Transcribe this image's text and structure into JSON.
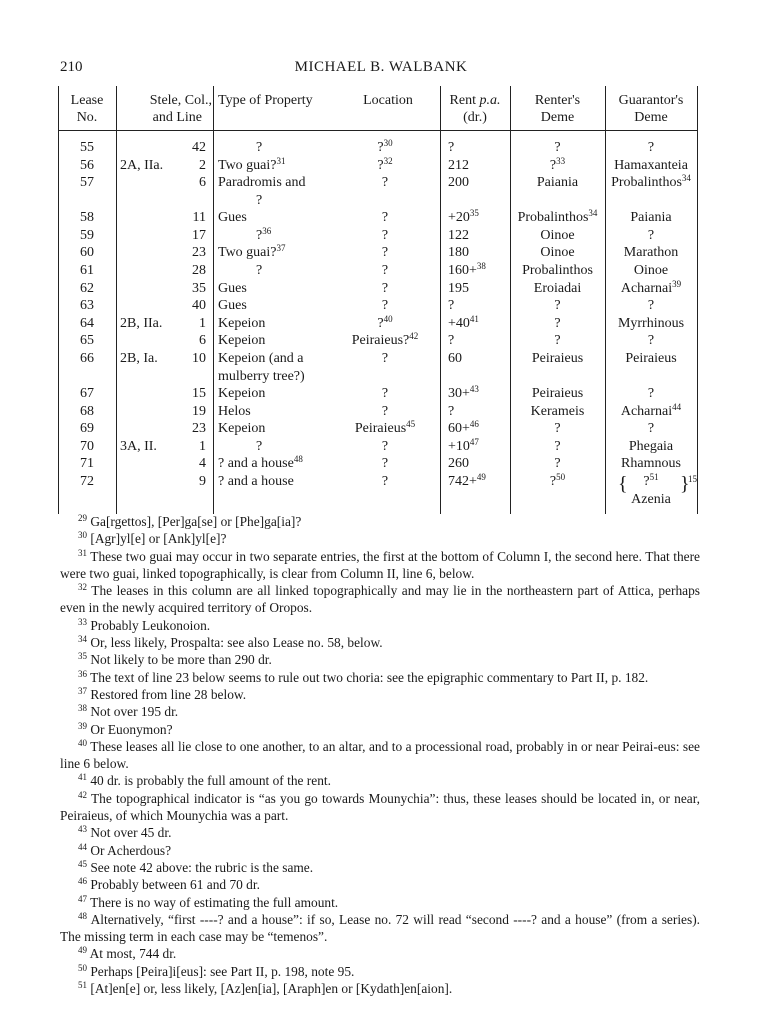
{
  "header": {
    "page_number": "210",
    "running_head": "MICHAEL B. WALBANK"
  },
  "table": {
    "columns": {
      "lease": [
        "Lease",
        "No."
      ],
      "stele": [
        "Stele, Col.,",
        "and Line"
      ],
      "type": "Type of Property",
      "location": "Location",
      "rent": [
        "Rent ",
        "p.a.",
        "(dr.)"
      ],
      "renter": [
        "Renter's",
        "Deme"
      ],
      "guarantor": [
        "Guarantor's",
        "Deme"
      ]
    },
    "rows": [
      {
        "lease": "55",
        "stele_line": "42",
        "type": "?",
        "location": "?",
        "location_sup": "30",
        "rent": "?",
        "renter": "?",
        "guarantor": "?"
      },
      {
        "lease": "56",
        "stele_prefix": "2A, IIa.",
        "stele_line": "2",
        "type": "Two guai?",
        "type_sup": "31",
        "location": "?",
        "location_sup": "32",
        "rent": "212",
        "renter": "?",
        "renter_sup": "33",
        "guarantor": "Hamaxanteia"
      },
      {
        "lease": "57",
        "stele_line": "6",
        "type": "Paradromis and",
        "type_line2": "?",
        "location": "?",
        "rent": "200",
        "renter": "Paiania",
        "guarantor": "Probalinthos",
        "guarantor_sup": "34"
      },
      {
        "lease": "58",
        "stele_line": "11",
        "type": "Gues",
        "location": "?",
        "rent": "+20",
        "rent_sup": "35",
        "renter": "Probalinthos",
        "renter_sup": "34",
        "guarantor": "Paiania"
      },
      {
        "lease": "59",
        "stele_line": "17",
        "type": "?",
        "type_sup": "36",
        "location": "?",
        "rent": "122",
        "renter": "Oinoe",
        "guarantor": "?"
      },
      {
        "lease": "60",
        "stele_line": "23",
        "type": "Two guai?",
        "type_sup": "37",
        "location": "?",
        "rent": "180",
        "renter": "Oinoe",
        "guarantor": "Marathon"
      },
      {
        "lease": "61",
        "stele_line": "28",
        "type": "?",
        "location": "?",
        "rent": "160+",
        "rent_sup": "38",
        "renter": "Probalinthos",
        "guarantor": "Oinoe"
      },
      {
        "lease": "62",
        "stele_line": "35",
        "type": "Gues",
        "location": "?",
        "rent": "195",
        "renter": "Eroiadai",
        "guarantor": "Acharnai",
        "guarantor_sup": "39"
      },
      {
        "lease": "63",
        "stele_line": "40",
        "type": "Gues",
        "location": "?",
        "rent": "?",
        "renter": "?",
        "guarantor": "?"
      },
      {
        "lease": "64",
        "stele_prefix": "2B, IIa.",
        "stele_line": "1",
        "type": "Kepeion",
        "location": "?",
        "location_sup": "40",
        "rent": "+40",
        "rent_sup": "41",
        "renter": "?",
        "guarantor": "Myrrhinous"
      },
      {
        "lease": "65",
        "stele_line": "6",
        "type": "Kepeion",
        "location": "Peiraieus?",
        "location_sup": "42",
        "rent": "?",
        "renter": "?",
        "guarantor": "?"
      },
      {
        "lease": "66",
        "stele_prefix": "2B, Ia.",
        "stele_line": "10",
        "type": "Kepeion (and a",
        "type_line2": "mulberry tree?)",
        "location": "?",
        "rent": "60",
        "renter": "Peiraieus",
        "guarantor": "Peiraieus"
      },
      {
        "lease": "67",
        "stele_line": "15",
        "type": "Kepeion",
        "location": "?",
        "rent": "30+",
        "rent_sup": "43",
        "renter": "Peiraieus",
        "guarantor": "?"
      },
      {
        "lease": "68",
        "stele_line": "19",
        "type": "Helos",
        "location": "?",
        "rent": "?",
        "renter": "Kerameis",
        "guarantor": "Acharnai",
        "guarantor_sup": "44"
      },
      {
        "lease": "69",
        "stele_line": "23",
        "type": "Kepeion",
        "location": "Peiraieus",
        "location_sup": "45",
        "rent": "60+",
        "rent_sup": "46",
        "renter": "?",
        "guarantor": "?"
      },
      {
        "lease": "70",
        "stele_prefix": "3A, II.",
        "stele_line": "1",
        "type": "?",
        "location": "?",
        "rent": "+10",
        "rent_sup": "47",
        "renter": "?",
        "guarantor": "Phegaia"
      },
      {
        "lease": "71",
        "stele_line": "4",
        "type": "? and a house",
        "type_sup": "48",
        "location": "?",
        "rent": "260",
        "renter": "?",
        "guarantor": "Rhamnous"
      },
      {
        "lease": "72",
        "stele_line": "9",
        "type": "? and a house",
        "location": "?",
        "rent": "742+",
        "rent_sup": "49",
        "renter": "?",
        "renter_sup": "50",
        "guarantor": "?",
        "guarantor_sup": "51",
        "guarantor_note": "15",
        "guarantor_line2": "Azenia"
      }
    ]
  },
  "footnotes": [
    {
      "n": "29",
      "text": "Ga[rgettos], [Per]ga[se] or [Phe]ga[ia]?"
    },
    {
      "n": "30",
      "text": "[Agr]yl[e] or [Ank]yl[e]?"
    },
    {
      "n": "31",
      "text": "These two guai may occur in two separate entries, the first at the bottom of Column I, the second here. That there were two guai, linked topographically, is clear from Column II, line 6, below."
    },
    {
      "n": "32",
      "text": "The leases in this column are all linked topographically and may lie in the northeastern part of Attica, perhaps even in the newly acquired territory of Oropos."
    },
    {
      "n": "33",
      "text": "Probably Leukonoion."
    },
    {
      "n": "34",
      "text": "Or, less likely, Prospalta: see also Lease no. 58, below."
    },
    {
      "n": "35",
      "text": "Not likely to be more than 290 dr."
    },
    {
      "n": "36",
      "text": "The text of line 23 below seems to rule out two choria: see the epigraphic commentary to Part II, p. 182."
    },
    {
      "n": "37",
      "text": "Restored from line 28 below."
    },
    {
      "n": "38",
      "text": "Not over 195 dr."
    },
    {
      "n": "39",
      "text": "Or Euonymon?"
    },
    {
      "n": "40",
      "text": "These leases all lie close to one another, to an altar, and to a processional road, probably in or near Peirai-eus: see line 6 below."
    },
    {
      "n": "41",
      "text": "40 dr. is probably the full amount of the rent."
    },
    {
      "n": "42",
      "text": "The topographical indicator is “as you go towards Mounychia”: thus, these leases should be located in, or near, Peiraieus, of which Mounychia was a part."
    },
    {
      "n": "43",
      "text": "Not over 45 dr."
    },
    {
      "n": "44",
      "text": "Or Acherdous?"
    },
    {
      "n": "45",
      "text": "See note 42 above: the rubric is the same."
    },
    {
      "n": "46",
      "text": "Probably between 61 and 70 dr."
    },
    {
      "n": "47",
      "text": "There is no way of estimating the full amount."
    },
    {
      "n": "48",
      "text": "Alternatively, “first ----? and a house”: if so, Lease no. 72 will read “second ----? and a house” (from a series). The missing term in each case may be “temenos”."
    },
    {
      "n": "49",
      "text": "At most, 744 dr."
    },
    {
      "n": "50",
      "text": "Perhaps [Peira]i[eus]: see Part II, p. 198, note 95."
    },
    {
      "n": "51",
      "text": "[At]en[e] or, less likely, [Az]en[ia], [Araph]en or [Kydath]en[aion]."
    }
  ]
}
